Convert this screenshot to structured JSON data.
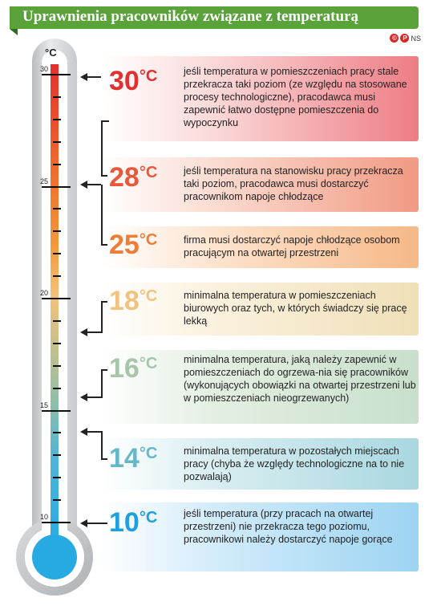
{
  "title": "Uprawnienia pracowników związane z temperaturą",
  "credit": {
    "mark1": "©",
    "mark2": "P",
    "initials": "NS"
  },
  "thermometer": {
    "unit": "°C",
    "tick_labels": [
      "30",
      "25",
      "20",
      "15",
      "10"
    ]
  },
  "rows": [
    {
      "temp": "30",
      "unit": "°C",
      "color": "#e3302f",
      "text": "jeśli temperatura w pomieszczeniach pracy stale przekracza taki poziom (ze względu na stosowane procesy technologiczne), pracodawca musi zapewnić łatwo dostępne pomieszczenia do wypoczynku"
    },
    {
      "temp": "28",
      "unit": "°C",
      "color": "#e8583a",
      "text": "jeśli temperatura na stanowisku pracy przekracza taki poziom, pracodawca musi dostarczyć pracownikom napoje chłodzące"
    },
    {
      "temp": "25",
      "unit": "°C",
      "color": "#ef7d3a",
      "text": "firma musi dostarczyć napoje chłodzące osobom pracującym na otwartej przestrzeni"
    },
    {
      "temp": "18",
      "unit": "°C",
      "color": "#f2c37e",
      "text": "minimalna temperatura w pomieszczeniach biurowych oraz tych, w których świadczy się pracę lekką"
    },
    {
      "temp": "16",
      "unit": "°C",
      "color": "#a6c5ab",
      "text": "minimalna temperatura, jaką należy zapewnić w pomieszczeniach do ogrzewa-nia się pracowników (wykonujących obowiązki na otwartej przestrzeni lub w pomieszczeniach nieogrzewanych)"
    },
    {
      "temp": "14",
      "unit": "°C",
      "color": "#66b7c8",
      "text": "minimalna temperatura w pozostałych miejscach pracy (chyba że względy technologiczne na to nie pozwalają)"
    },
    {
      "temp": "10",
      "unit": "°C",
      "color": "#1e9fe0",
      "text": "jeśli temperatura (przy pracach na otwartej przestrzeni) nie przekracza tego poziomu, pracownikowi należy dostarczyć napoje gorące"
    }
  ],
  "colors": {
    "title_bg": "#5aa23a",
    "liquid_top": "#e3302f",
    "liquid_bottom": "#27aae1"
  }
}
